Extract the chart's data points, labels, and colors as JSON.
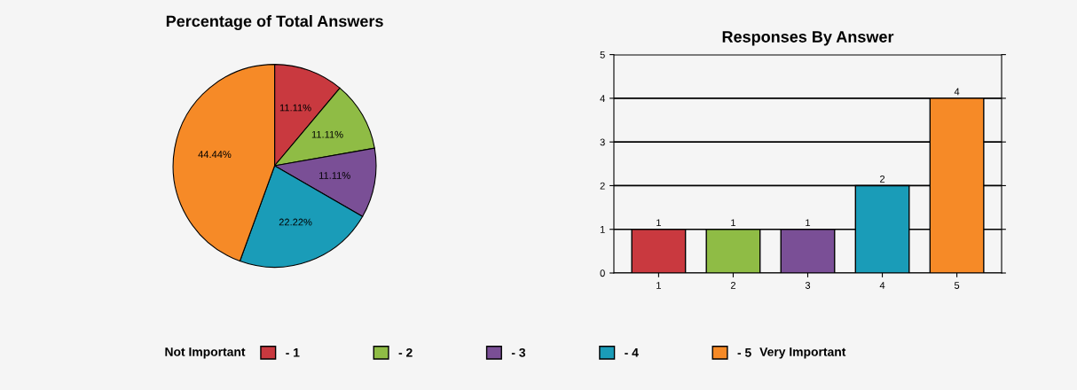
{
  "chart_data": [
    {
      "type": "pie",
      "title": "Percentage of Total Answers",
      "categories": [
        "- 1",
        "- 2",
        "- 3",
        "- 4",
        "- 5"
      ],
      "values": [
        11.11,
        11.11,
        11.11,
        22.22,
        44.44
      ],
      "value_labels": [
        "11.11%",
        "11.11%",
        "11.11%",
        "22.22%",
        "44.44%"
      ],
      "colors": [
        "#c9393f",
        "#8fbc45",
        "#7a4f96",
        "#1a9cb8",
        "#f68a27"
      ],
      "legend": "bottom",
      "annotations": [
        "Not Important",
        "Very Important"
      ]
    },
    {
      "type": "bar",
      "title": "Responses By Answer",
      "categories": [
        "1",
        "2",
        "3",
        "4",
        "5"
      ],
      "values": [
        1,
        1,
        1,
        2,
        4
      ],
      "colors": [
        "#c9393f",
        "#8fbc45",
        "#7a4f96",
        "#1a9cb8",
        "#f68a27"
      ],
      "ylim": [
        0,
        5
      ],
      "yticks": [
        0,
        1,
        2,
        3,
        4,
        5
      ],
      "grid": "y",
      "data_labels": true
    }
  ]
}
